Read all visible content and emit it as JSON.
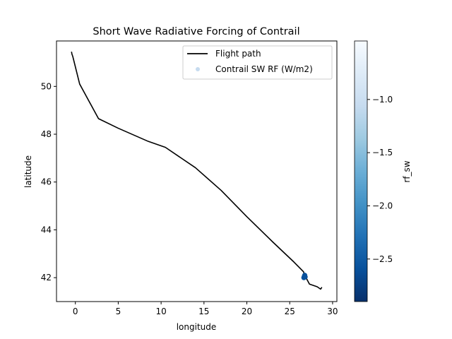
{
  "chart_data": {
    "type": "line",
    "title": "Short Wave Radiative Forcing of Contrail",
    "xlabel": "longitude",
    "ylabel": "latitude",
    "xlim": [
      -2.2,
      30.5
    ],
    "ylim": [
      41.0,
      51.9
    ],
    "xticks": [
      0,
      5,
      10,
      15,
      20,
      25,
      30
    ],
    "yticks": [
      42,
      44,
      46,
      48,
      50
    ],
    "grid": false,
    "legend_position": "top-right",
    "series": [
      {
        "name": "Flight path",
        "kind": "line",
        "color": "#000000",
        "x": [
          -0.45,
          -0.4,
          -0.3,
          0.5,
          2.7,
          5.0,
          8.5,
          10.5,
          14.0,
          17.0,
          20.0,
          23.0,
          25.5,
          26.6,
          26.9,
          27.3,
          28.2,
          28.6,
          28.75
        ],
        "y": [
          51.45,
          51.35,
          51.25,
          50.1,
          48.65,
          48.25,
          47.7,
          47.45,
          46.6,
          45.65,
          44.55,
          43.5,
          42.65,
          42.25,
          42.0,
          41.73,
          41.62,
          41.52,
          41.6
        ]
      },
      {
        "name": "Contrail SW RF (W/m2)",
        "kind": "scatter",
        "x": [
          26.65,
          26.7,
          26.75,
          26.8
        ],
        "y": [
          42.0,
          42.05,
          42.1,
          42.03
        ],
        "values": [
          -2.55,
          -2.6,
          -2.5,
          -2.45
        ]
      }
    ],
    "colorbar": {
      "label": "rf_sw",
      "range": [
        -2.9,
        -0.45
      ],
      "ticks": [
        -2.5,
        -2.0,
        -1.5,
        -1.0
      ],
      "tick_labels": [
        "−2.5",
        "−2.0",
        "−1.5",
        "−1.0"
      ],
      "colormap": "Blues_r"
    }
  }
}
